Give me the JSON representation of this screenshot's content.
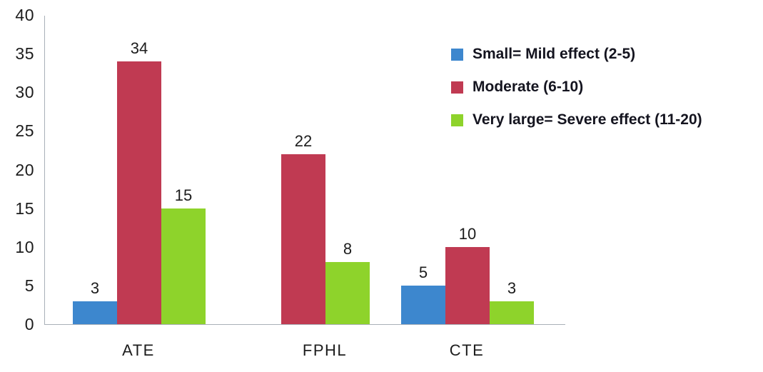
{
  "chart_data": {
    "type": "bar",
    "categories": [
      "ATE",
      "FPHL",
      "CTE"
    ],
    "series": [
      {
        "name": "Small= Mild effect (2-5)",
        "color": "#3d87ce",
        "values": [
          3,
          0,
          5
        ]
      },
      {
        "name": "Moderate (6-10)",
        "color": "#c03a52",
        "values": [
          34,
          22,
          10
        ]
      },
      {
        "name": "Very large= Severe effect (11-20)",
        "color": "#8ed32b",
        "values": [
          15,
          8,
          3
        ]
      }
    ],
    "title": "",
    "xlabel": "",
    "ylabel": "",
    "ylim": [
      0,
      40
    ],
    "yticks": [
      0,
      5,
      10,
      15,
      20,
      25,
      30,
      35,
      40
    ],
    "grid": false,
    "legend_position": "right",
    "bar_value_labels_shown": true
  }
}
